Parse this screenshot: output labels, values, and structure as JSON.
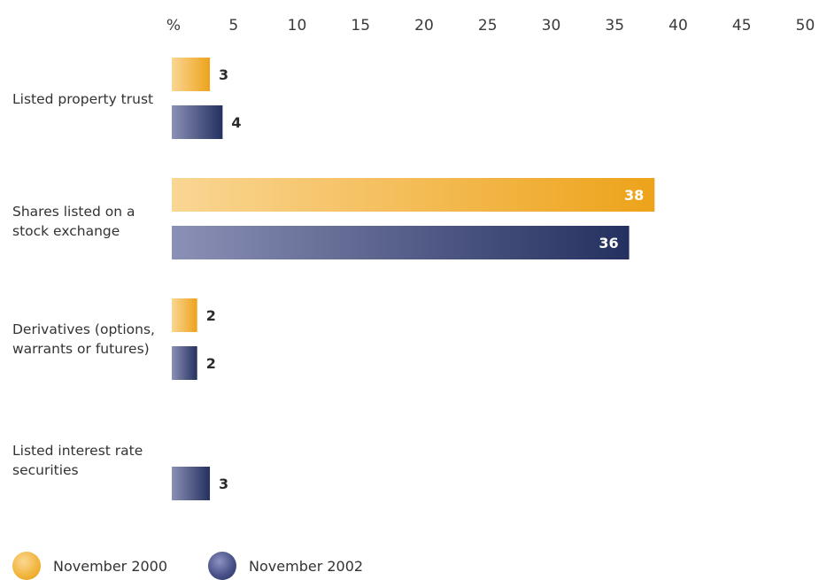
{
  "chart_data": {
    "type": "bar",
    "orientation": "horizontal",
    "axis_unit_label": "%",
    "xlim": [
      0,
      50
    ],
    "ticks": [
      5,
      10,
      15,
      20,
      25,
      30,
      35,
      40,
      45,
      50
    ],
    "grid": false,
    "legend_position": "bottom-left",
    "categories": [
      "Listed property trust",
      "Shares listed on a stock exchange",
      "Derivatives (options, warrants or futures)",
      "Listed interest rate securities"
    ],
    "category_lines": [
      [
        "Listed property trust"
      ],
      [
        "Shares listed on a",
        "stock exchange"
      ],
      [
        "Derivatives (options,",
        "warrants or futures)"
      ],
      [
        "Listed interest rate",
        "securities"
      ]
    ],
    "series": [
      {
        "name": "November 2000",
        "values": [
          3,
          38,
          2,
          null
        ],
        "color": "#f0ac2a"
      },
      {
        "name": "November 2002",
        "values": [
          4,
          36,
          2,
          3
        ],
        "color": "#2e3a6c"
      }
    ]
  }
}
